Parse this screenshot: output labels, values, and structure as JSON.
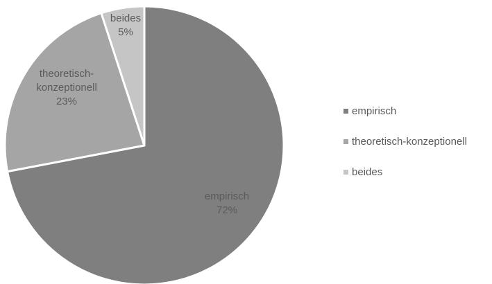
{
  "chart_data": {
    "type": "pie",
    "categories": [
      "empirisch",
      "theoretisch-konzeptionell",
      "beides"
    ],
    "values": [
      72,
      23,
      5
    ],
    "data_labels": [
      [
        "empirisch",
        "72%"
      ],
      [
        "theoretisch-",
        "konzeptionell",
        "23%"
      ],
      [
        "beides",
        "5%"
      ]
    ],
    "colors": [
      "#7f7f7f",
      "#a5a5a5",
      "#c5c5c5"
    ],
    "start_angle_deg": 0,
    "direction": "clockwise",
    "legend": {
      "position": "right",
      "items": [
        "empirisch",
        "theoretisch-konzeptionell",
        "beides"
      ]
    }
  }
}
